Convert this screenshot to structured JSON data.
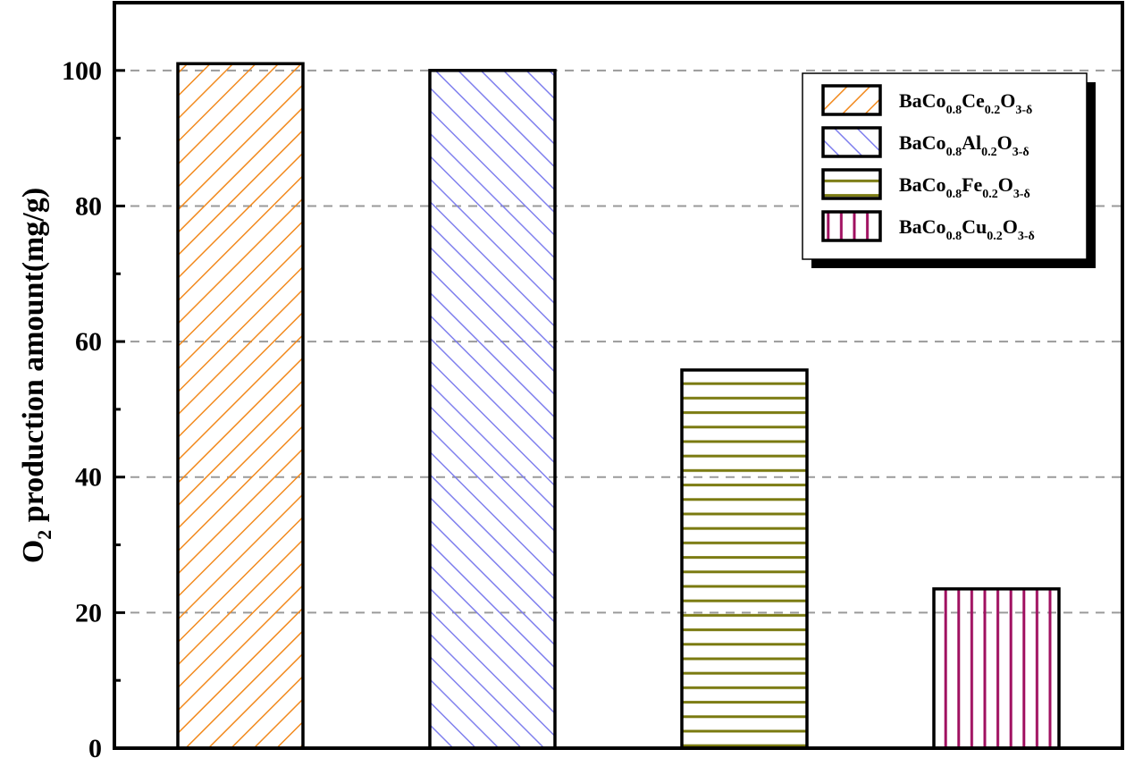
{
  "chart_data": {
    "type": "bar",
    "categories": [
      "BaCo0.8Ce0.2O3-δ",
      "BaCo0.8Al0.2O3-δ",
      "BaCo0.8Fe0.2O3-δ",
      "BaCo0.8Cu0.2O3-δ"
    ],
    "values": [
      101,
      100,
      55.8,
      23.5
    ],
    "ylabel": {
      "main": "O",
      "sub": "2",
      "rest": " production amount(mg/g)"
    },
    "ylim": [
      0,
      110
    ],
    "yticks": [
      0,
      20,
      40,
      60,
      80,
      100
    ],
    "grid": "horizontal dashed",
    "legend_position": "top-right",
    "legend": [
      {
        "base": "BaCo",
        "s1": "0.8",
        "el": "Ce",
        "s2": "0.2",
        "o": "O",
        "s3": "3-δ"
      },
      {
        "base": "BaCo",
        "s1": "0.8",
        "el": "Al",
        "s2": "0.2",
        "o": "O",
        "s3": "3-δ"
      },
      {
        "base": "BaCo",
        "s1": "0.8",
        "el": "Fe",
        "s2": "0.2",
        "o": "O",
        "s3": "3-δ"
      },
      {
        "base": "BaCo",
        "s1": "0.8",
        "el": "Cu",
        "s2": "0.2",
        "o": "O",
        "s3": "3-δ"
      }
    ],
    "colors": [
      "#f28a1e",
      "#8080ee",
      "#7a7a10",
      "#a01060"
    ],
    "patterns": [
      "diagonal-up",
      "diagonal-down",
      "horizontal",
      "vertical"
    ]
  }
}
